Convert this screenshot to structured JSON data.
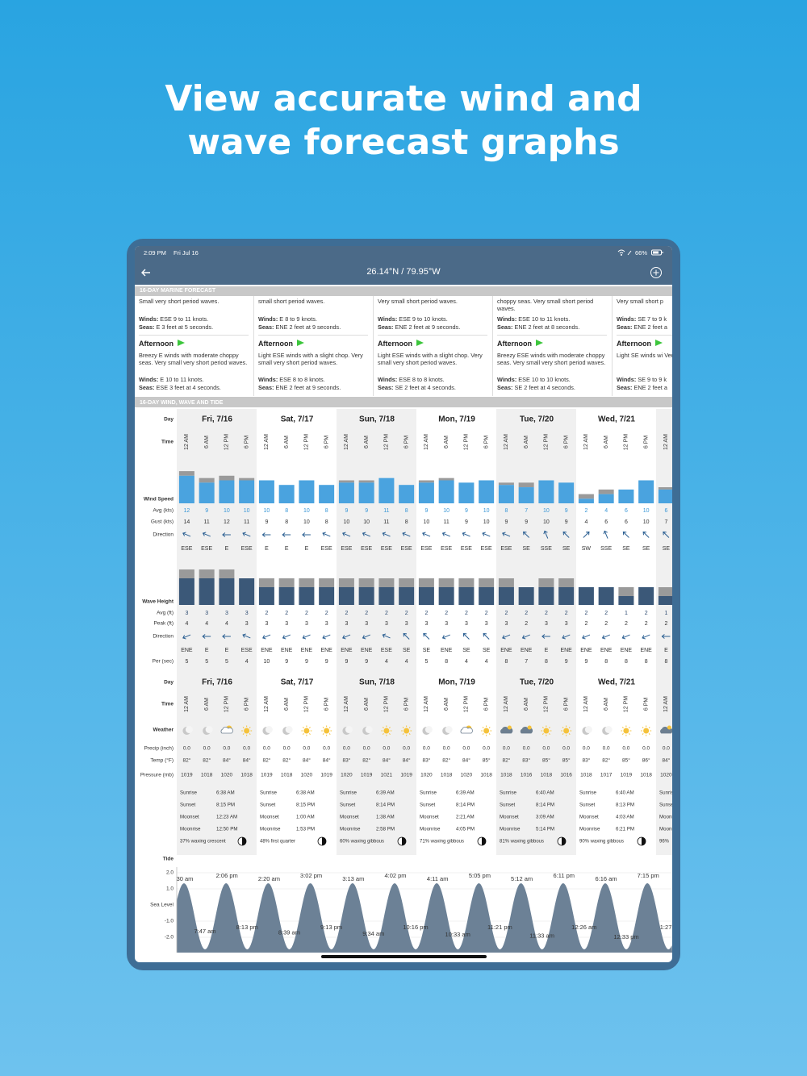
{
  "headline": [
    "View accurate wind and",
    "wave forecast graphs"
  ],
  "status_bar": {
    "time": "2:09 PM",
    "date": "Fri Jul 16",
    "battery": "66%"
  },
  "nav": {
    "title": "26.14°N / 79.95°W"
  },
  "marine": {
    "title": "16-DAY MARINE FORECAST",
    "winds_label": "Winds:",
    "seas_label": "Seas:",
    "afternoon_label": "Afternoon",
    "columns": [
      {
        "morning": {
          "text": "Small very short period waves.",
          "winds": "ESE 9 to 11 knots.",
          "seas": "E 3 feet at 5 seconds."
        },
        "afternoon": {
          "text": "Breezy E winds with moderate choppy seas. Very small very short period waves.",
          "winds": "E 10 to 11 knots.",
          "seas": "ESE 3 feet at 4 seconds."
        }
      },
      {
        "morning": {
          "text": "small short period waves.",
          "winds": "E 8 to 9 knots.",
          "seas": "ENE 2 feet at 9 seconds."
        },
        "afternoon": {
          "text": "Light ESE winds with a slight chop. Very small very short period waves.",
          "winds": "ESE 8 to 8 knots.",
          "seas": "ENE 2 feet at 9 seconds."
        }
      },
      {
        "morning": {
          "text": "Very small short period waves.",
          "winds": "ESE 9 to 10 knots.",
          "seas": "ENE 2 feet at 9 seconds."
        },
        "afternoon": {
          "text": "Light ESE winds with a slight chop. Very small very short period waves.",
          "winds": "ESE 8 to 8 knots.",
          "seas": "SE 2 feet at 4 seconds."
        }
      },
      {
        "morning": {
          "text": "choppy seas. Very small short period waves.",
          "winds": "ESE 10 to 11 knots.",
          "seas": "ENE 2 feet at 8 seconds."
        },
        "afternoon": {
          "text": "Breezy ESE winds with moderate choppy seas. Very small very short period waves.",
          "winds": "ESE 10 to 10 knots.",
          "seas": "SE 2 feet at 4 seconds."
        }
      },
      {
        "morning": {
          "text": "Very small short p",
          "winds": "SE 7 to 9 k",
          "seas": "ENE 2 feet a"
        },
        "afternoon": {
          "text": "Light SE winds wi Very small short p",
          "winds": "SE 9 to 9 k",
          "seas": "ENE 2 feet a"
        }
      }
    ]
  },
  "grid": {
    "title": "16-DAY WIND, WAVE AND TIDE",
    "labels": {
      "day": "Day",
      "time": "Time",
      "wind_speed": "Wind Speed",
      "wind_avg": "Avg (kts)",
      "gust": "Gust (kts)",
      "direction": "Direction",
      "wave_height": "Wave Height",
      "wave_avg": "Avg (ft)",
      "peak": "Peak (ft)",
      "period": "Per (sec)",
      "weather": "Weather",
      "precip": "Precip (inch)",
      "temp": "Temp (°F)",
      "pressure": "Pressure (mb)",
      "tide": "Tide",
      "sea_level": "Sea Level"
    },
    "days": [
      "Fri, 7/16",
      "Sat, 7/17",
      "Sun, 7/18",
      "Mon, 7/19",
      "Tue, 7/20",
      "Wed, 7/21"
    ],
    "times": [
      "12 AM",
      "6 AM",
      "12 PM",
      "6 PM",
      "12 AM",
      "6 AM",
      "12 PM",
      "6 PM",
      "12 AM",
      "6 AM",
      "12 PM",
      "6 PM",
      "12 AM",
      "6 AM",
      "12 PM",
      "6 PM",
      "12 AM",
      "6 AM",
      "12 PM",
      "6 PM",
      "12 AM",
      "6 AM",
      "12 PM",
      "6 PM",
      "12 AM"
    ],
    "wind": {
      "avg": [
        12,
        9,
        10,
        10,
        10,
        8,
        10,
        8,
        9,
        9,
        11,
        8,
        9,
        10,
        9,
        10,
        8,
        7,
        10,
        9,
        2,
        4,
        6,
        10,
        6
      ],
      "gust": [
        14,
        11,
        12,
        11,
        9,
        8,
        10,
        8,
        10,
        10,
        11,
        8,
        10,
        11,
        9,
        10,
        9,
        9,
        10,
        9,
        4,
        6,
        6,
        10,
        7
      ],
      "direction": [
        "ESE",
        "ESE",
        "E",
        "ESE",
        "E",
        "E",
        "E",
        "ESE",
        "ESE",
        "ESE",
        "ESE",
        "ESE",
        "ESE",
        "ESE",
        "ESE",
        "ESE",
        "ESE",
        "SE",
        "SSE",
        "SE",
        "SW",
        "SSE",
        "SE",
        "SE",
        "SE"
      ]
    },
    "wave": {
      "avg": [
        3,
        3,
        3,
        3,
        2,
        2,
        2,
        2,
        2,
        2,
        2,
        2,
        2,
        2,
        2,
        2,
        2,
        2,
        2,
        2,
        2,
        2,
        1,
        2,
        1
      ],
      "peak": [
        4,
        4,
        4,
        3,
        3,
        3,
        3,
        3,
        3,
        3,
        3,
        3,
        3,
        3,
        3,
        3,
        3,
        2,
        3,
        3,
        2,
        2,
        2,
        2,
        2
      ],
      "direction": [
        "ENE",
        "E",
        "E",
        "ESE",
        "ENE",
        "ENE",
        "ENE",
        "ENE",
        "ENE",
        "ENE",
        "ESE",
        "SE",
        "SE",
        "ENE",
        "SE",
        "SE",
        "ENE",
        "ENE",
        "E",
        "ENE",
        "ENE",
        "ENE",
        "ENE",
        "ENE",
        "E"
      ],
      "period": [
        5,
        5,
        5,
        4,
        10,
        9,
        9,
        9,
        9,
        9,
        4,
        4,
        5,
        8,
        4,
        4,
        8,
        7,
        8,
        9,
        9,
        8,
        8,
        8,
        8
      ]
    },
    "weather": [
      "moon",
      "moon",
      "partly",
      "sun",
      "moon",
      "moon",
      "sun",
      "sun",
      "moon",
      "moon",
      "sun",
      "sun",
      "moon",
      "moon",
      "partly",
      "sun",
      "storm",
      "storm",
      "sun",
      "sun",
      "moon",
      "moon",
      "sun",
      "sun",
      "storm"
    ],
    "precip": [
      "0.0",
      "0.0",
      "0.0",
      "0.0",
      "0.0",
      "0.0",
      "0.0",
      "0.0",
      "0.0",
      "0.0",
      "0.0",
      "0.0",
      "0.0",
      "0.0",
      "0.0",
      "0.0",
      "0.0",
      "0.0",
      "0.0",
      "0.0",
      "0.0",
      "0.0",
      "0.0",
      "0.0",
      "0.0"
    ],
    "temp": [
      "82°",
      "82°",
      "84°",
      "84°",
      "82°",
      "82°",
      "84°",
      "84°",
      "83°",
      "82°",
      "84°",
      "84°",
      "83°",
      "82°",
      "84°",
      "85°",
      "82°",
      "83°",
      "85°",
      "85°",
      "83°",
      "82°",
      "85°",
      "86°",
      "84°"
    ],
    "pressure": [
      1019,
      1018,
      1020,
      1018,
      1019,
      1018,
      1020,
      1019,
      1020,
      1019,
      1021,
      1019,
      1020,
      1018,
      1020,
      1018,
      1018,
      1016,
      1018,
      1016,
      1018,
      1017,
      1019,
      1018,
      1020
    ],
    "astro_labels": {
      "sunrise": "Sunrise",
      "sunset": "Sunset",
      "moonset": "Moonset",
      "moonrise": "Moonrise"
    },
    "astro": [
      {
        "sunrise": "6:38 AM",
        "sunset": "8:15 PM",
        "moonset": "12:23 AM",
        "moonrise": "12:50 PM",
        "phase": "37% waxing crescent"
      },
      {
        "sunrise": "6:38 AM",
        "sunset": "8:15 PM",
        "moonset": "1:00 AM",
        "moonrise": "1:53 PM",
        "phase": "48% first quarter"
      },
      {
        "sunrise": "6:39 AM",
        "sunset": "8:14 PM",
        "moonset": "1:38 AM",
        "moonrise": "2:58 PM",
        "phase": "60% waxing gibbous"
      },
      {
        "sunrise": "6:39 AM",
        "sunset": "8:14 PM",
        "moonset": "2:21 AM",
        "moonrise": "4:05 PM",
        "phase": "71% waxing gibbous"
      },
      {
        "sunrise": "6:40 AM",
        "sunset": "8:14 PM",
        "moonset": "3:09 AM",
        "moonrise": "5:14 PM",
        "phase": "81% waxing gibbous"
      },
      {
        "sunrise": "6:40 AM",
        "sunset": "8:13 PM",
        "moonset": "4:03 AM",
        "moonrise": "6:21 PM",
        "phase": "90% waxing gibbous"
      },
      {
        "phase": "96%"
      }
    ],
    "tide": {
      "ticks": [
        "2.0",
        "1.0",
        "-1.0",
        "-2.0"
      ],
      "highs": [
        "30 am",
        "2:06 pm",
        "2:20 am",
        "3:02 pm",
        "3:13 am",
        "4:02 pm",
        "4:11 am",
        "5:05 pm",
        "5:12 am",
        "6:11 pm",
        "6:16 am",
        "7:15 pm"
      ],
      "lows": [
        "7:47 am",
        "8:13 pm",
        "8:39 am",
        "9:13 pm",
        "9:34 am",
        "10:16 pm",
        "10:33 am",
        "11:21 pm",
        "11:33 am",
        "12:26 am",
        "12:33 pm",
        "1:27 a"
      ]
    }
  }
}
